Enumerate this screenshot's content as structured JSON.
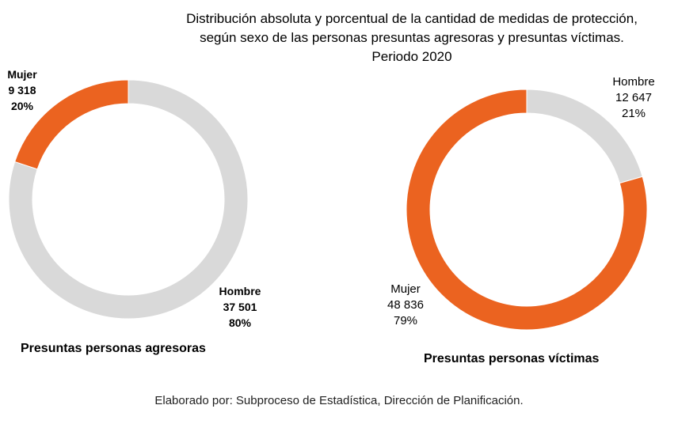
{
  "chart_data": {
    "title_lines": [
      "Distribución absoluta y porcentual de la cantidad de medidas de protección,",
      "según sexo de las personas presuntas agresoras y presuntas víctimas.",
      "Periodo 2020"
    ],
    "charts": [
      {
        "type": "pie",
        "subtitle": "Presuntas personas agresoras",
        "slices": [
          {
            "label": "Hombre",
            "value": 37501,
            "value_text": "37 501",
            "percent": "80%",
            "color": "#d9d9d9"
          },
          {
            "label": "Mujer",
            "value": 9318,
            "value_text": "9 318",
            "percent": "20%",
            "color": "#eb6320"
          }
        ]
      },
      {
        "type": "pie",
        "subtitle": "Presuntas personas víctimas",
        "slices": [
          {
            "label": "Hombre",
            "value": 12647,
            "value_text": "12 647",
            "percent": "21%",
            "color": "#d9d9d9"
          },
          {
            "label": "Mujer",
            "value": 48836,
            "value_text": "48 836",
            "percent": "79%",
            "color": "#eb6320"
          }
        ]
      }
    ],
    "donut": true
  },
  "footer": "Elaborado por: Subproceso de Estadística, Dirección de Planificación."
}
